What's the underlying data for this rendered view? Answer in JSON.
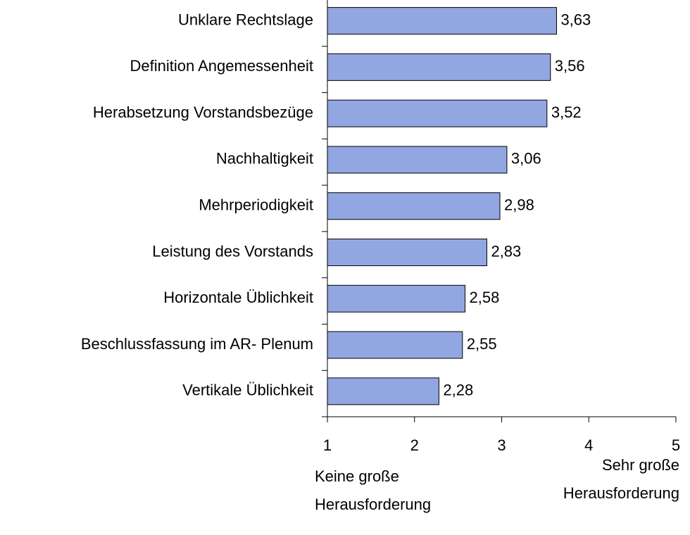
{
  "chart_data": {
    "type": "hbar",
    "categories": [
      "Unklare Rechtslage",
      "Definition Angemessenheit",
      "Herabsetzung Vorstandsbezüge",
      "Nachhaltigkeit",
      "Mehrperiodigkeit",
      "Leistung des Vorstands",
      "Horizontale Üblichkeit",
      "Beschlussfassung im AR- Plenum",
      "Vertikale Üblichkeit"
    ],
    "values": [
      3.63,
      3.56,
      3.52,
      3.06,
      2.98,
      2.83,
      2.58,
      2.55,
      2.28
    ],
    "value_labels": [
      "3,63",
      "3,56",
      "3,52",
      "3,06",
      "2,98",
      "2,83",
      "2,58",
      "2,55",
      "2,28"
    ],
    "color": "#92a6e2",
    "xlim": [
      1,
      5
    ],
    "xticks": [
      1,
      2,
      3,
      4,
      5
    ],
    "annotations": [
      {
        "lines": [
          "Keine große",
          "Herausforderung"
        ]
      },
      {
        "lines": [
          "Sehr große",
          "Herausforderung"
        ]
      }
    ]
  }
}
